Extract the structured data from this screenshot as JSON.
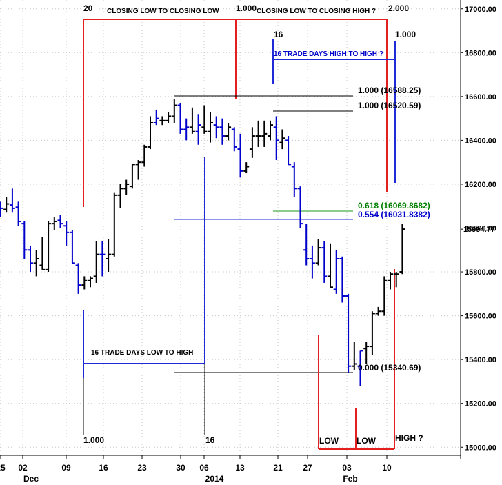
{
  "chart_data": {
    "type": "ohlc",
    "title": "",
    "xlabel": "",
    "ylabel": "",
    "ylim": [
      14930,
      17020
    ],
    "grid": true,
    "y_ticks": [
      "17000.00",
      "16800.00",
      "16600.00",
      "16400.00",
      "16200.00",
      "16000.00",
      "15800.00",
      "15600.00",
      "15400.00",
      "15200.00",
      "15000.00"
    ],
    "y_tick_values": [
      17000,
      16800,
      16600,
      16400,
      16200,
      16000,
      15800,
      15600,
      15400,
      15200,
      15000
    ],
    "x_ticks": [
      {
        "day": "25",
        "month": ""
      },
      {
        "day": "02",
        "month": "Dec"
      },
      {
        "day": "09",
        "month": ""
      },
      {
        "day": "16",
        "month": ""
      },
      {
        "day": "23",
        "month": ""
      },
      {
        "day": "30",
        "month": ""
      },
      {
        "day": "06",
        "month": "2014"
      },
      {
        "day": "13",
        "month": ""
      },
      {
        "day": "21",
        "month": ""
      },
      {
        "day": "27",
        "month": ""
      },
      {
        "day": "03",
        "month": "Feb"
      },
      {
        "day": "10",
        "month": ""
      }
    ],
    "last_price_label": "15994.77",
    "last_price_value": 15994.77,
    "bars": [
      {
        "o": 16100,
        "h": 16120,
        "l": 16050,
        "c": 16090,
        "dir": "down"
      },
      {
        "o": 16085,
        "h": 16140,
        "l": 16070,
        "c": 16110,
        "dir": "up"
      },
      {
        "o": 16105,
        "h": 16180,
        "l": 16070,
        "c": 16090,
        "dir": "down"
      },
      {
        "o": 16095,
        "h": 16120,
        "l": 16010,
        "c": 16030,
        "dir": "down"
      },
      {
        "o": 16020,
        "h": 16030,
        "l": 15860,
        "c": 15900,
        "dir": "down"
      },
      {
        "o": 15900,
        "h": 15920,
        "l": 15800,
        "c": 15840,
        "dir": "down"
      },
      {
        "o": 15840,
        "h": 15900,
        "l": 15780,
        "c": 15860,
        "dir": "up"
      },
      {
        "o": 15830,
        "h": 15960,
        "l": 15810,
        "c": 15810,
        "dir": "up"
      },
      {
        "o": 15810,
        "h": 16030,
        "l": 15800,
        "c": 16020,
        "dir": "up"
      },
      {
        "o": 16020,
        "h": 16050,
        "l": 15990,
        "c": 16030,
        "dir": "up"
      },
      {
        "o": 16035,
        "h": 16060,
        "l": 16000,
        "c": 16020,
        "dir": "down"
      },
      {
        "o": 16010,
        "h": 16030,
        "l": 15920,
        "c": 15980,
        "dir": "down"
      },
      {
        "o": 15980,
        "h": 15990,
        "l": 15840,
        "c": 15840,
        "dir": "down"
      },
      {
        "o": 15830,
        "h": 15840,
        "l": 15700,
        "c": 15740,
        "dir": "down"
      },
      {
        "o": 15740,
        "h": 15780,
        "l": 15720,
        "c": 15760,
        "dir": "up"
      },
      {
        "o": 15760,
        "h": 15780,
        "l": 15730,
        "c": 15770,
        "dir": "up"
      },
      {
        "o": 15780,
        "h": 15940,
        "l": 15750,
        "c": 15880,
        "dir": "up"
      },
      {
        "o": 15880,
        "h": 15940,
        "l": 15780,
        "c": 15880,
        "dir": "down"
      },
      {
        "o": 15860,
        "h": 15950,
        "l": 15800,
        "c": 15880,
        "dir": "up"
      },
      {
        "o": 15880,
        "h": 16160,
        "l": 15870,
        "c": 16150,
        "dir": "up"
      },
      {
        "o": 16150,
        "h": 16200,
        "l": 16090,
        "c": 16180,
        "dir": "up"
      },
      {
        "o": 16180,
        "h": 16220,
        "l": 16150,
        "c": 16200,
        "dir": "up"
      },
      {
        "o": 16190,
        "h": 16290,
        "l": 16180,
        "c": 16290,
        "dir": "up"
      },
      {
        "o": 16290,
        "h": 16310,
        "l": 16220,
        "c": 16300,
        "dir": "up"
      },
      {
        "o": 16300,
        "h": 16380,
        "l": 16280,
        "c": 16370,
        "dir": "up"
      },
      {
        "o": 16370,
        "h": 16510,
        "l": 16360,
        "c": 16480,
        "dir": "up"
      },
      {
        "o": 16480,
        "h": 16540,
        "l": 16470,
        "c": 16500,
        "dir": "down"
      },
      {
        "o": 16490,
        "h": 16510,
        "l": 16470,
        "c": 16490,
        "dir": "up"
      },
      {
        "o": 16490,
        "h": 16530,
        "l": 16480,
        "c": 16510,
        "dir": "up"
      },
      {
        "o": 16510,
        "h": 16590,
        "l": 16480,
        "c": 16560,
        "dir": "up"
      },
      {
        "o": 16560,
        "h": 16570,
        "l": 16430,
        "c": 16450,
        "dir": "down"
      },
      {
        "o": 16450,
        "h": 16500,
        "l": 16400,
        "c": 16460,
        "dir": "down"
      },
      {
        "o": 16460,
        "h": 16550,
        "l": 16430,
        "c": 16440,
        "dir": "up"
      },
      {
        "o": 16440,
        "h": 16520,
        "l": 16380,
        "c": 16470,
        "dir": "down"
      },
      {
        "o": 16460,
        "h": 16560,
        "l": 16430,
        "c": 16440,
        "dir": "up"
      },
      {
        "o": 16440,
        "h": 16530,
        "l": 16390,
        "c": 16480,
        "dir": "up"
      },
      {
        "o": 16470,
        "h": 16510,
        "l": 16410,
        "c": 16460,
        "dir": "down"
      },
      {
        "o": 16460,
        "h": 16500,
        "l": 16380,
        "c": 16420,
        "dir": "down"
      },
      {
        "o": 16420,
        "h": 16480,
        "l": 16400,
        "c": 16460,
        "dir": "up"
      },
      {
        "o": 16450,
        "h": 16460,
        "l": 16350,
        "c": 16370,
        "dir": "down"
      },
      {
        "o": 16360,
        "h": 16430,
        "l": 16230,
        "c": 16260,
        "dir": "down"
      },
      {
        "o": 16260,
        "h": 16300,
        "l": 16250,
        "c": 16280,
        "dir": "up"
      },
      {
        "o": 16360,
        "h": 16460,
        "l": 16320,
        "c": 16420,
        "dir": "up"
      },
      {
        "o": 16420,
        "h": 16490,
        "l": 16370,
        "c": 16420,
        "dir": "up"
      },
      {
        "o": 16420,
        "h": 16490,
        "l": 16370,
        "c": 16430,
        "dir": "up"
      },
      {
        "o": 16420,
        "h": 16490,
        "l": 16400,
        "c": 16470,
        "dir": "up"
      },
      {
        "o": 16460,
        "h": 16510,
        "l": 16310,
        "c": 16400,
        "dir": "down"
      },
      {
        "o": 16390,
        "h": 16450,
        "l": 16360,
        "c": 16410,
        "dir": "up"
      },
      {
        "o": 16400,
        "h": 16420,
        "l": 16290,
        "c": 16290,
        "dir": "down"
      },
      {
        "o": 16280,
        "h": 16300,
        "l": 16140,
        "c": 16180,
        "dir": "down"
      },
      {
        "o": 16180,
        "h": 16190,
        "l": 16000,
        "c": 16020,
        "dir": "down"
      },
      {
        "o": 15900,
        "h": 16020,
        "l": 15830,
        "c": 15860,
        "dir": "down"
      },
      {
        "o": 15860,
        "h": 15920,
        "l": 15770,
        "c": 15840,
        "dir": "down"
      },
      {
        "o": 15840,
        "h": 15950,
        "l": 15830,
        "c": 15910,
        "dir": "up"
      },
      {
        "o": 15910,
        "h": 15940,
        "l": 15750,
        "c": 15780,
        "dir": "down"
      },
      {
        "o": 15780,
        "h": 15930,
        "l": 15730,
        "c": 15730,
        "dir": "up"
      },
      {
        "o": 15720,
        "h": 15900,
        "l": 15700,
        "c": 15860,
        "dir": "down"
      },
      {
        "o": 15860,
        "h": 15870,
        "l": 15660,
        "c": 15690,
        "dir": "down"
      },
      {
        "o": 15690,
        "h": 15700,
        "l": 15340,
        "c": 15370,
        "dir": "down"
      },
      {
        "o": 15370,
        "h": 15480,
        "l": 15350,
        "c": 15380,
        "dir": "up"
      },
      {
        "o": 15370,
        "h": 15440,
        "l": 15280,
        "c": 15440,
        "dir": "down"
      },
      {
        "o": 15450,
        "h": 15480,
        "l": 15380,
        "c": 15460,
        "dir": "up"
      },
      {
        "o": 15460,
        "h": 15620,
        "l": 15420,
        "c": 15610,
        "dir": "up"
      },
      {
        "o": 15610,
        "h": 15640,
        "l": 15600,
        "c": 15620,
        "dir": "up"
      },
      {
        "o": 15620,
        "h": 15780,
        "l": 15600,
        "c": 15760,
        "dir": "up"
      },
      {
        "o": 15760,
        "h": 15800,
        "l": 15720,
        "c": 15790,
        "dir": "up"
      },
      {
        "o": 15790,
        "h": 15800,
        "l": 15730,
        "c": 15790,
        "dir": "up"
      },
      {
        "o": 15800,
        "h": 16020,
        "l": 15790,
        "c": 15995,
        "dir": "up"
      }
    ],
    "annotations": {
      "texts": [
        {
          "key": "closing-low-to-closing-low",
          "text": "CLOSING LOW TO CLOSING LOW",
          "color": "#000000"
        },
        {
          "key": "closing-low-to-closing-high",
          "text": "CLOSING LOW TO CLOSING HIGH ?",
          "color": "#000000"
        },
        {
          "key": "count-20",
          "text": "20",
          "color": "#000000"
        },
        {
          "key": "ratio-top-1",
          "text": "1.000",
          "color": "#000000"
        },
        {
          "key": "ratio-top-2",
          "text": "2.000",
          "color": "#000000"
        },
        {
          "key": "count-16-top",
          "text": "16",
          "color": "#000000"
        },
        {
          "key": "ratio-top-right",
          "text": "1.000",
          "color": "#000000"
        },
        {
          "key": "sixteen-days-high-to-high",
          "text": "16 TRADE DAYS HIGH TO HIGH ?",
          "color": "#0000cc"
        },
        {
          "key": "level-1-16588",
          "text": "1.000 (16588.25)",
          "color": "#000000"
        },
        {
          "key": "level-1-16520",
          "text": "1.000 (16520.59)",
          "color": "#000000"
        },
        {
          "key": "level-0618",
          "text": "0.618 (16069.8682)",
          "color": "#008000"
        },
        {
          "key": "level-0554",
          "text": "0.554 (16031.8382)",
          "color": "#0000cc"
        },
        {
          "key": "level-0000",
          "text": "0.000 (15340.69)",
          "color": "#000000"
        },
        {
          "key": "sixteen-days-low-to-high",
          "text": "16 TRADE DAYS LOW TO HIGH",
          "color": "#000000"
        },
        {
          "key": "ratio-bottom-1",
          "text": "1.000",
          "color": "#000000"
        },
        {
          "key": "count-16-bottom",
          "text": "16",
          "color": "#000000"
        },
        {
          "key": "low-1",
          "text": "LOW",
          "color": "#000000"
        },
        {
          "key": "low-2",
          "text": "LOW",
          "color": "#000000"
        },
        {
          "key": "high-question",
          "text": "HIGH ?",
          "color": "#000000"
        }
      ]
    }
  },
  "colors": {
    "up": "#000000",
    "down": "#0000cc",
    "red": "#e41f1f",
    "blue": "#1f2bd6",
    "green": "#1a9a1a",
    "grid": "#c8c8c8"
  }
}
